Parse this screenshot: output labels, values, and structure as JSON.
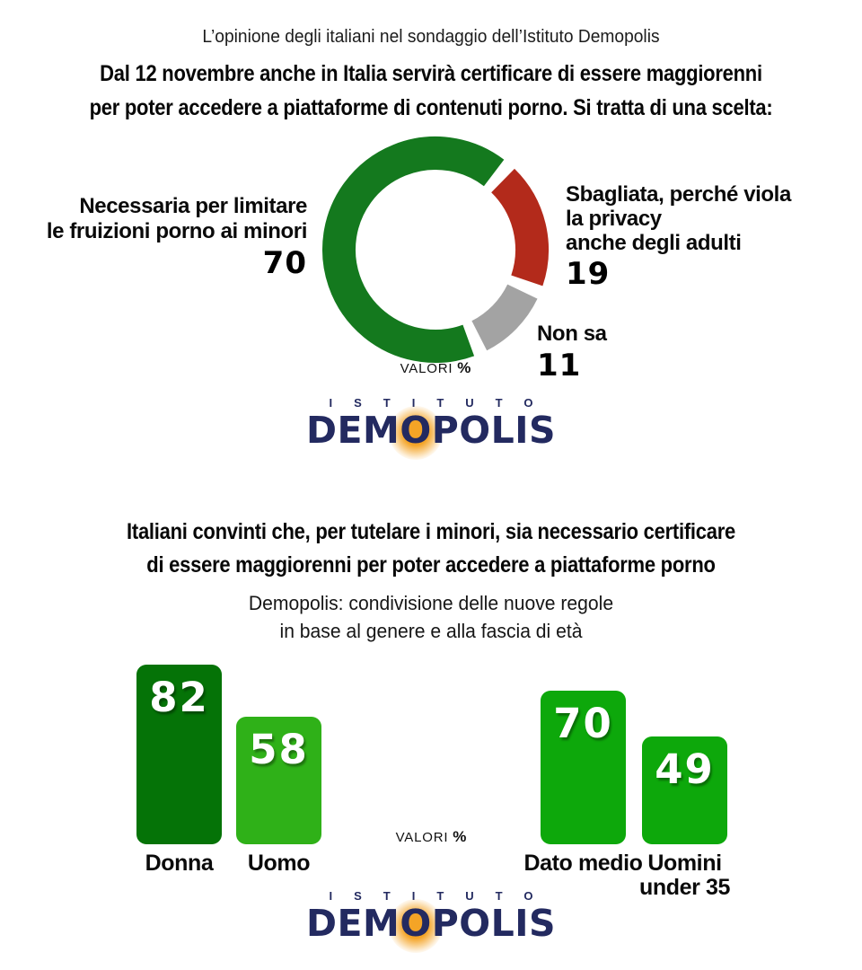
{
  "misc": {
    "valori": "VALORI",
    "pct": "%"
  },
  "colors": {
    "donut_green": "#14791e",
    "donut_red": "#b32a1b",
    "donut_gray": "#a3a3a3",
    "bar_dark_green": "#057307",
    "bar_bright_green": "#2fb118",
    "bar_medium_green": "#0da80b",
    "logo_navy": "#232a60",
    "logo_orange": "#f4a426",
    "text_black": "#0a0a0a"
  },
  "section1": {
    "kicker": "L’opinione degli italiani nel sondaggio dell’Istituto Demopolis",
    "headline": [
      "Dal 12 novembre anche in Italia servirà certificare di essere maggiorenni",
      "per poter accedere a piattaforme di contenuti porno. Si tratta di una scelta:"
    ],
    "donut_labels": {
      "left": {
        "lines": [
          "Necessaria per limitare",
          "le fruizioni porno ai minori"
        ]
      },
      "right": {
        "lines": [
          "Sbagliata, perché viola",
          "la privacy",
          "anche degli adulti"
        ]
      },
      "bottom": {
        "lines": [
          "Non sa"
        ]
      }
    }
  },
  "logo": {
    "istituto": "ISTITUTO",
    "brand_pre": "DEM",
    "brand_o": "O",
    "brand_post": "POLIS"
  },
  "section2": {
    "heading": [
      "Italiani convinti che, per tutelare i minori, sia necessario certificare",
      "di essere maggiorenni per poter accedere a piattaforme porno"
    ],
    "subtitle": [
      "Demopolis: condivisione delle nuove regole",
      "in base al genere e alla fascia di età"
    ],
    "bar_labels": [
      [
        "Donna"
      ],
      [
        "Uomo"
      ],
      [
        "Dato medio"
      ],
      [
        "Uomini",
        "under 35"
      ]
    ]
  },
  "chart_data": [
    {
      "type": "donut",
      "title": "Dal 12 novembre anche in Italia servirà certificare di essere maggiorenni per poter accedere a piattaforme di contenuti porno. Si tratta di una scelta:",
      "unit": "%",
      "note": "VALORI %",
      "segments": [
        {
          "label": "Necessaria per limitare le fruizioni porno ai minori",
          "value": 70,
          "color": "#14791e"
        },
        {
          "label": "Sbagliata, perché viola la privacy anche degli adulti",
          "value": 19,
          "color": "#b32a1b"
        },
        {
          "label": "Non sa",
          "value": 11,
          "color": "#a3a3a3"
        }
      ],
      "start_angle_deg": 160,
      "gap_deg": 7,
      "legend_position": "sides"
    },
    {
      "type": "bar",
      "title": "Demopolis: condivisione delle nuove regole in base al genere e alla fascia di età",
      "unit": "%",
      "note": "VALORI %",
      "categories": [
        "Donna",
        "Uomo",
        "Dato medio",
        "Uomini under 35"
      ],
      "values": [
        82,
        58,
        70,
        49
      ],
      "colors": [
        "#057307",
        "#2fb118",
        "#0da80b",
        "#0da80b"
      ],
      "groups": [
        [
          0,
          1
        ],
        [
          2,
          3
        ]
      ],
      "ylim": [
        0,
        100
      ],
      "grid": false,
      "value_labels": "inside-top"
    }
  ]
}
